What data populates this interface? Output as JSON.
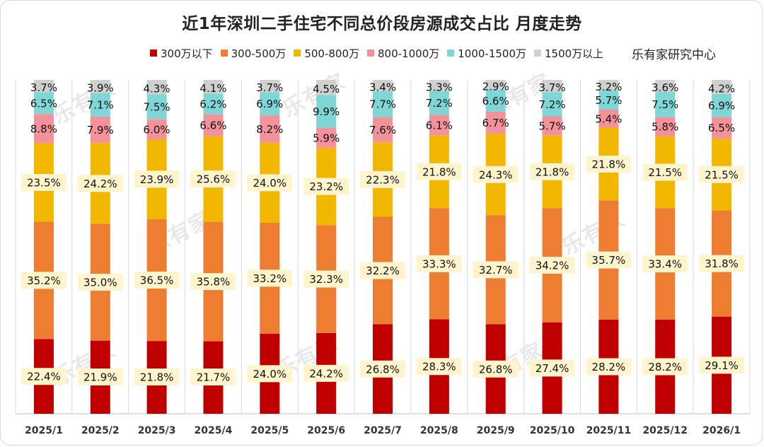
{
  "chart_data": {
    "type": "bar",
    "stacked": true,
    "percent_stacked": true,
    "title": "近1年深圳二手住宅不同总价段房源成交占比 月度走势",
    "source": "乐有家研究中心",
    "watermark": "乐有家",
    "categories": [
      "2025/1",
      "2025/2",
      "2025/3",
      "2025/4",
      "2025/5",
      "2025/6",
      "2025/7",
      "2025/8",
      "2025/9",
      "2025/10",
      "2025/11",
      "2025/12",
      "2026/1"
    ],
    "legend_position": "top",
    "grid": false,
    "series": [
      {
        "name": "300万以下",
        "color": "#c00000",
        "values": [
          22.4,
          21.9,
          21.8,
          21.7,
          24.0,
          24.2,
          26.8,
          28.3,
          26.8,
          27.4,
          28.2,
          28.2,
          29.1
        ]
      },
      {
        "name": "300-500万",
        "color": "#ed7d31",
        "values": [
          35.2,
          35.0,
          36.5,
          35.8,
          33.2,
          32.3,
          32.2,
          33.3,
          32.7,
          34.2,
          35.7,
          33.4,
          31.8
        ]
      },
      {
        "name": "500-800万",
        "color": "#f2b800",
        "values": [
          23.5,
          24.2,
          23.9,
          25.6,
          24.0,
          23.2,
          22.3,
          21.8,
          24.3,
          21.8,
          21.8,
          21.5,
          21.5
        ]
      },
      {
        "name": "800-1000万",
        "color": "#f4929b",
        "values": [
          8.8,
          7.9,
          6.0,
          6.6,
          8.2,
          5.9,
          7.6,
          6.1,
          6.7,
          5.7,
          5.4,
          5.8,
          6.5
        ]
      },
      {
        "name": "1000-1500万",
        "color": "#7fd6d6",
        "values": [
          6.5,
          7.1,
          7.5,
          6.2,
          6.9,
          9.9,
          7.7,
          7.2,
          6.6,
          7.2,
          5.7,
          7.5,
          6.9
        ]
      },
      {
        "name": "1500万以上",
        "color": "#d0d0d0",
        "values": [
          3.7,
          3.9,
          4.3,
          4.1,
          3.7,
          4.5,
          3.4,
          3.3,
          2.9,
          3.7,
          3.2,
          3.6,
          4.2
        ]
      }
    ]
  }
}
